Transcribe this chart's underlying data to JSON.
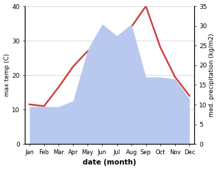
{
  "months": [
    "Jan",
    "Feb",
    "Mar",
    "Apr",
    "May",
    "Jun",
    "Jul",
    "Aug",
    "Sep",
    "Oct",
    "Nov",
    "Dec"
  ],
  "temp": [
    11.5,
    11.0,
    16.5,
    22.5,
    27.0,
    29.5,
    29.5,
    34.0,
    40.0,
    28.0,
    19.5,
    14.0
  ],
  "precip": [
    9.5,
    9.5,
    9.5,
    11.0,
    24.0,
    30.5,
    27.5,
    30.5,
    17.0,
    17.0,
    16.5,
    11.5
  ],
  "temp_color": "#cc4444",
  "precip_color": "#b8c8ee",
  "left_ylim": [
    0,
    40
  ],
  "right_ylim": [
    0,
    35
  ],
  "left_yticks": [
    0,
    10,
    20,
    30,
    40
  ],
  "right_yticks": [
    0,
    5,
    10,
    15,
    20,
    25,
    30,
    35
  ],
  "ylabel_left": "max temp (C)",
  "ylabel_right": "med. precipitation (kg/m2)",
  "xlabel": "date (month)",
  "bg_color": "#ffffff",
  "line_width": 1.8,
  "grid_color": "#cccccc"
}
